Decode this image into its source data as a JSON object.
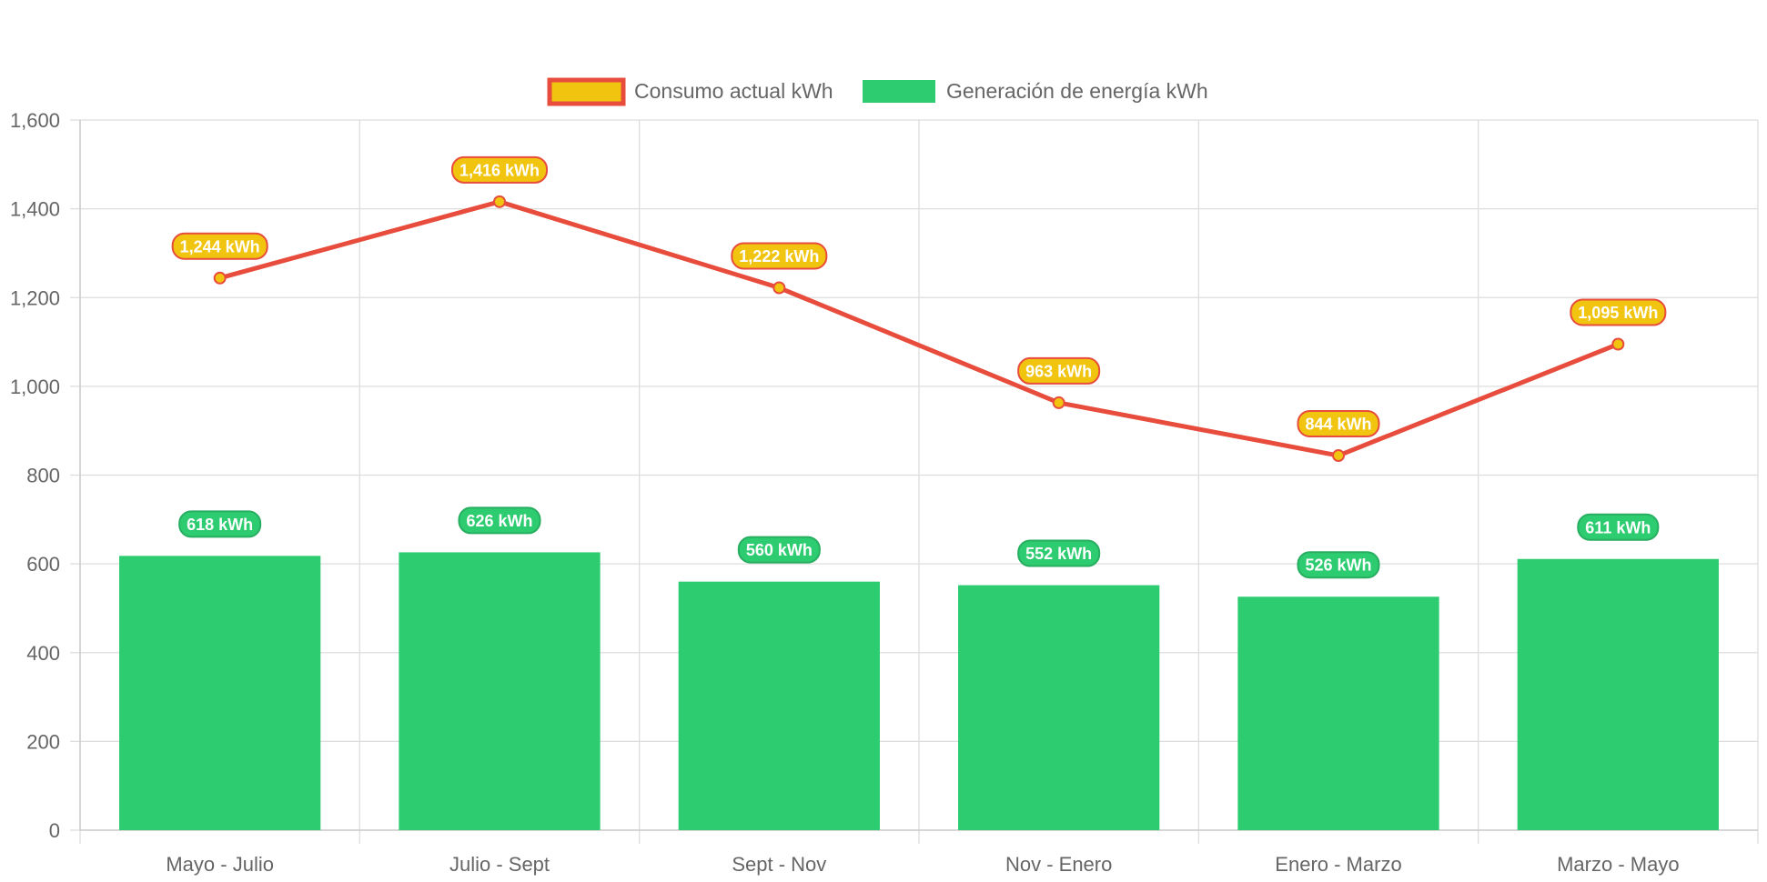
{
  "chart_data": {
    "type": "bar",
    "categories": [
      "Mayo - Julio",
      "Julio - Sept",
      "Sept - Nov",
      "Nov - Enero",
      "Enero - Marzo",
      "Marzo - Mayo"
    ],
    "series": [
      {
        "name": "Consumo actual kWh",
        "kind": "line",
        "values": [
          1244,
          1416,
          1222,
          963,
          844,
          1095
        ],
        "labels": [
          "1,244 kWh",
          "1,416 kWh",
          "1,222 kWh",
          "963 kWh",
          "844 kWh",
          "1,095 kWh"
        ],
        "line_color": "#e74c3c",
        "fill_color": "#f1c40f"
      },
      {
        "name": "Generación de energía kWh",
        "kind": "bar",
        "values": [
          618,
          626,
          560,
          552,
          526,
          611
        ],
        "labels": [
          "618 kWh",
          "626 kWh",
          "560 kWh",
          "552 kWh",
          "526 kWh",
          "611 kWh"
        ],
        "color": "#2ecc71"
      }
    ],
    "ylim": [
      0,
      1600
    ],
    "yticks": [
      "0",
      "200",
      "400",
      "600",
      "800",
      "1,000",
      "1,200",
      "1,400",
      "1,600"
    ],
    "ytick_values": [
      0,
      200,
      400,
      600,
      800,
      1000,
      1200,
      1400,
      1600
    ],
    "grid": true,
    "legend": "top-center",
    "title": "",
    "xlabel": "",
    "ylabel": ""
  }
}
